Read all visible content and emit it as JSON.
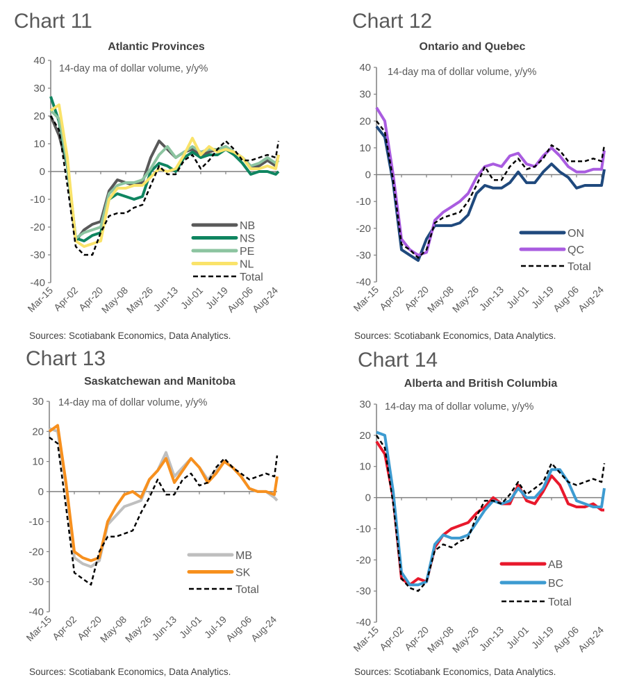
{
  "chart_data": [
    {
      "type": "line",
      "chart_label": "Chart 11",
      "title": "Atlantic Provinces",
      "note": "14-day ma of dollar volume, y/y%",
      "source": "Sources: Scotiabank Economics, Data Analytics.",
      "ylim": [
        -40,
        40
      ],
      "yticks": [
        40,
        30,
        20,
        10,
        0,
        -10,
        -20,
        -30,
        -40
      ],
      "xticks": [
        "Mar-15",
        "Apr-02",
        "Apr-20",
        "May-08",
        "May-26",
        "Jun-13",
        "Jul-01",
        "Jul-19",
        "Aug-06",
        "Aug-24"
      ],
      "legend": "bottom-right",
      "x": [
        "Mar-15",
        "Mar-21",
        "Mar-27",
        "Apr-02",
        "Apr-08",
        "Apr-14",
        "Apr-20",
        "Apr-26",
        "May-02",
        "May-08",
        "May-14",
        "May-20",
        "May-26",
        "Jun-01",
        "Jun-07",
        "Jun-13",
        "Jun-19",
        "Jun-25",
        "Jul-01",
        "Jul-07",
        "Jul-13",
        "Jul-19",
        "Jul-25",
        "Jul-31",
        "Aug-06",
        "Aug-12",
        "Aug-18",
        "Aug-24",
        "Aug-26"
      ],
      "series": [
        {
          "name": "NB",
          "color": "#595959",
          "dashed": false,
          "values": [
            20,
            13,
            2,
            -25,
            -21,
            -19,
            -18,
            -7,
            -3,
            -4,
            -5,
            -4,
            5,
            11,
            8,
            5,
            7,
            8,
            6,
            7,
            8,
            9,
            7,
            5,
            2,
            2,
            4,
            2,
            6
          ]
        },
        {
          "name": "NS",
          "color": "#0f8560",
          "dashed": false,
          "values": [
            27,
            18,
            2,
            -24,
            -25,
            -23,
            -22,
            -10,
            -8,
            -9,
            -10,
            -9,
            0,
            3,
            2,
            0,
            5,
            7,
            5,
            6,
            6,
            8,
            6,
            3,
            -1,
            0,
            0,
            -1,
            0
          ]
        },
        {
          "name": "PE",
          "color": "#8cc4a0",
          "dashed": false,
          "values": [
            22,
            19,
            3,
            -24,
            -22,
            -21,
            -20,
            -8,
            -5,
            -4,
            -4,
            -3,
            1,
            6,
            9,
            5,
            7,
            9,
            7,
            8,
            8,
            9,
            7,
            5,
            2,
            3,
            5,
            3,
            4
          ]
        },
        {
          "name": "NL",
          "color": "#fae36a",
          "dashed": false,
          "values": [
            22,
            24,
            5,
            -25,
            -27,
            -26,
            -25,
            -10,
            -6,
            -6,
            -5,
            -5,
            -2,
            1,
            0,
            1,
            6,
            12,
            6,
            9,
            7,
            8,
            7,
            5,
            1,
            1,
            2,
            1,
            6
          ]
        },
        {
          "name": "Total",
          "color": "#000000",
          "dashed": true,
          "values": [
            20,
            15,
            -5,
            -27,
            -30,
            -30,
            -22,
            -16,
            -15,
            -15,
            -13,
            -12,
            -5,
            2,
            -1,
            -1,
            4,
            6,
            1,
            4,
            8,
            11,
            8,
            4,
            4,
            5,
            6,
            5,
            11
          ]
        }
      ]
    },
    {
      "type": "line",
      "chart_label": "Chart 12",
      "title": "Ontario and Quebec",
      "note": "14-day ma of dollar volume, y/y%",
      "source": "Sources: Scotiabank Economics, Data Analytics.",
      "ylim": [
        -40,
        40
      ],
      "yticks": [
        40,
        30,
        20,
        10,
        0,
        -10,
        -20,
        -30,
        -40
      ],
      "xticks": [
        "Mar-15",
        "Apr-02",
        "Apr-20",
        "May-08",
        "May-26",
        "Jun-13",
        "Jul-01",
        "Jul-19",
        "Aug-06",
        "Aug-24"
      ],
      "legend": "bottom-right",
      "x": [
        "Mar-15",
        "Mar-21",
        "Mar-27",
        "Apr-02",
        "Apr-08",
        "Apr-14",
        "Apr-20",
        "Apr-26",
        "May-02",
        "May-08",
        "May-14",
        "May-20",
        "May-26",
        "Jun-01",
        "Jun-07",
        "Jun-13",
        "Jun-19",
        "Jun-25",
        "Jul-01",
        "Jul-07",
        "Jul-13",
        "Jul-19",
        "Jul-25",
        "Jul-31",
        "Aug-06",
        "Aug-12",
        "Aug-18",
        "Aug-24",
        "Aug-26"
      ],
      "series": [
        {
          "name": "ON",
          "color": "#1f497d",
          "dashed": false,
          "values": [
            18,
            14,
            -3,
            -28,
            -30,
            -32,
            -24,
            -19,
            -19,
            -19,
            -18,
            -15,
            -7,
            -4,
            -5,
            -5,
            -3,
            1,
            -3,
            -3,
            1,
            4,
            1,
            -1,
            -5,
            -4,
            -4,
            -4,
            2
          ]
        },
        {
          "name": "QC",
          "color": "#a95ce0",
          "dashed": false,
          "values": [
            25,
            20,
            0,
            -24,
            -28,
            -30,
            -29,
            -17,
            -14,
            -12,
            -10,
            -7,
            -1,
            3,
            4,
            3,
            7,
            8,
            4,
            3,
            7,
            10,
            7,
            3,
            1,
            1,
            2,
            2,
            9
          ]
        },
        {
          "name": "Total",
          "color": "#000000",
          "dashed": true,
          "values": [
            20,
            16,
            -2,
            -26,
            -28,
            -31,
            -28,
            -18,
            -16,
            -15,
            -14,
            -10,
            -4,
            3,
            -2,
            -2,
            3,
            6,
            2,
            3,
            6,
            11,
            9,
            5,
            5,
            5,
            6,
            5,
            11
          ]
        }
      ]
    },
    {
      "type": "line",
      "chart_label": "Chart 13",
      "title": "Saskatchewan and Manitoba",
      "note": "14-day ma of dollar volume, y/y%",
      "source": "Sources: Scotiabank Economics, Data Analytics.",
      "ylim": [
        -40,
        30
      ],
      "yticks": [
        30,
        20,
        10,
        0,
        -10,
        -20,
        -30,
        -40
      ],
      "xticks": [
        "Mar-15",
        "Apr-02",
        "Apr-20",
        "May-08",
        "May-26",
        "Jun-13",
        "Jul-01",
        "Jul-19",
        "Aug-06",
        "Aug-24"
      ],
      "legend": "bottom-right",
      "x": [
        "Mar-15",
        "Mar-21",
        "Mar-27",
        "Apr-02",
        "Apr-08",
        "Apr-14",
        "Apr-20",
        "Apr-26",
        "May-02",
        "May-08",
        "May-14",
        "May-20",
        "May-26",
        "Jun-01",
        "Jun-07",
        "Jun-13",
        "Jun-19",
        "Jun-25",
        "Jul-01",
        "Jul-07",
        "Jul-13",
        "Jul-19",
        "Jul-25",
        "Jul-31",
        "Aug-06",
        "Aug-12",
        "Aug-18",
        "Aug-24",
        "Aug-26"
      ],
      "series": [
        {
          "name": "MB",
          "color": "#bfbfbf",
          "dashed": false,
          "values": [
            21,
            20,
            2,
            -22,
            -24,
            -25,
            -23,
            -11,
            -8,
            -5,
            -4,
            -3,
            4,
            7,
            13,
            5,
            8,
            11,
            8,
            4,
            7,
            10,
            8,
            5,
            1,
            0,
            0,
            -2,
            -3
          ]
        },
        {
          "name": "SK",
          "color": "#f7901e",
          "dashed": false,
          "values": [
            20,
            22,
            3,
            -20,
            -22,
            -23,
            -22,
            -10,
            -5,
            -1,
            0,
            -2,
            4,
            7,
            11,
            3,
            7,
            11,
            8,
            3,
            6,
            10,
            8,
            5,
            1,
            0,
            0,
            -1,
            5
          ]
        },
        {
          "name": "Total",
          "color": "#000000",
          "dashed": true,
          "values": [
            18,
            16,
            -5,
            -27,
            -29,
            -31,
            -20,
            -15,
            -15,
            -14,
            -13,
            -7,
            -2,
            4,
            -1,
            -1,
            4,
            6,
            2,
            3,
            8,
            11,
            8,
            6,
            4,
            5,
            6,
            5,
            12
          ]
        }
      ]
    },
    {
      "type": "line",
      "chart_label": "Chart 14",
      "title": "Alberta and British Columbia",
      "note": "14-day ma of dollar volume, y/y%",
      "source": "Sources: Scotiabank Economics, Data Analytics.",
      "ylim": [
        -40,
        30
      ],
      "yticks": [
        30,
        20,
        10,
        0,
        -10,
        -20,
        -30,
        -40
      ],
      "xticks": [
        "Mar-15",
        "Apr-02",
        "Apr-20",
        "May-08",
        "May-26",
        "Jun-13",
        "Jul-01",
        "Jul-19",
        "Aug-06",
        "Aug-24"
      ],
      "legend": "bottom-right",
      "x": [
        "Mar-15",
        "Mar-21",
        "Mar-27",
        "Apr-02",
        "Apr-08",
        "Apr-14",
        "Apr-20",
        "Apr-26",
        "May-02",
        "May-08",
        "May-14",
        "May-20",
        "May-26",
        "Jun-01",
        "Jun-07",
        "Jun-13",
        "Jun-19",
        "Jun-25",
        "Jul-01",
        "Jul-07",
        "Jul-13",
        "Jul-19",
        "Jul-25",
        "Jul-31",
        "Aug-06",
        "Aug-12",
        "Aug-18",
        "Aug-24",
        "Aug-26"
      ],
      "series": [
        {
          "name": "AB",
          "color": "#e8192c",
          "dashed": false,
          "values": [
            18,
            14,
            0,
            -26,
            -28,
            -26,
            -27,
            -16,
            -12,
            -10,
            -9,
            -8,
            -5,
            -3,
            0,
            -2,
            -2,
            4,
            -1,
            -2,
            2,
            7,
            4,
            -2,
            -3,
            -3,
            -2,
            -4,
            -4
          ]
        },
        {
          "name": "BC",
          "color": "#3d9bd1",
          "dashed": false,
          "values": [
            21,
            20,
            2,
            -24,
            -28,
            -28,
            -27,
            -15,
            -12,
            -13,
            -13,
            -12,
            -8,
            -4,
            -1,
            -2,
            -1,
            3,
            0,
            0,
            3,
            9,
            9,
            5,
            -1,
            -2,
            -3,
            -3,
            3
          ]
        },
        {
          "name": "Total",
          "color": "#000000",
          "dashed": true,
          "values": [
            20,
            16,
            -2,
            -26,
            -29,
            -30,
            -27,
            -17,
            -15,
            -16,
            -14,
            -13,
            -6,
            -1,
            -1,
            -2,
            1,
            5,
            1,
            3,
            5,
            11,
            8,
            5,
            4,
            5,
            6,
            5,
            11
          ]
        }
      ]
    }
  ]
}
